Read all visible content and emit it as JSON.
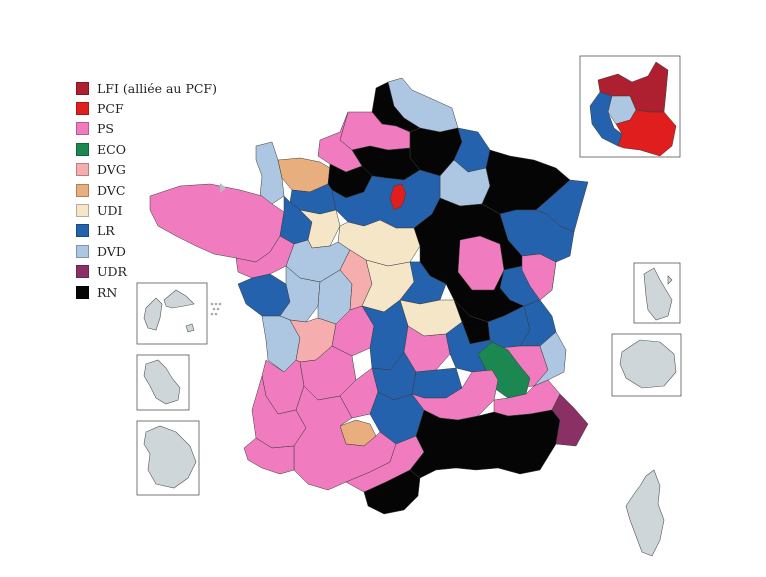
{
  "colors": {
    "LFI": "#ae1f30",
    "PCF": "#e01e1e",
    "PS": "#f07cbf",
    "ECO": "#1b8751",
    "DVG": "#f5adad",
    "DVC": "#e8ae7d",
    "UDI": "#f4e6c6",
    "LR": "#2462ae",
    "DVD": "#adc6e1",
    "UDR": "#8b3065",
    "RN": "#050505",
    "neutral": "#cfd6da"
  },
  "legend": [
    {
      "key": "LFI",
      "label": "LFI (alliée au PCF)"
    },
    {
      "key": "PCF",
      "label": "PCF"
    },
    {
      "key": "PS",
      "label": "PS"
    },
    {
      "key": "ECO",
      "label": "ECO"
    },
    {
      "key": "DVG",
      "label": "DVG"
    },
    {
      "key": "DVC",
      "label": "DVC"
    },
    {
      "key": "UDI",
      "label": "UDI"
    },
    {
      "key": "LR",
      "label": "LR"
    },
    {
      "key": "DVD",
      "label": "DVD"
    },
    {
      "key": "UDR",
      "label": "UDR"
    },
    {
      "key": "RN",
      "label": "RN"
    }
  ],
  "regions": {
    "nord": "DVD",
    "nord_lille": "RN",
    "pas_de_calais_coast": "RN",
    "somme": "PS",
    "aisne": "RN",
    "ardennes": "LR",
    "marne": "DVD",
    "meuse_moselle": "RN",
    "bas_rhin": "LR",
    "vosges_haut_rhin": "LR",
    "seine_maritime": "PS",
    "calvados": "DVC",
    "manche": "DVD",
    "eure": "RN",
    "oise": "RN",
    "paris_area": "LR",
    "idf_red": "PCF",
    "bretagne": "PS",
    "mayenne": "LR",
    "sarthe": "UDI",
    "orne": "LR",
    "loiret": "UDI",
    "indre_et_loire": "DVD",
    "yonne": "RN",
    "haute_marne": "RN",
    "cote_dor": "PS",
    "haute_saone_doubs": "LR",
    "jura": "PS",
    "loire_atlantique": "PS",
    "vendee": "LR",
    "deux_sevres": "DVD",
    "vienne": "DVD",
    "indre": "DVG",
    "cher": "UDI",
    "nievre": "LR",
    "saone_et_loire": "RN",
    "allier": "UDI",
    "ain": "LR",
    "savoie": "LR",
    "charente_maritime": "DVD",
    "charente": "DVG",
    "haute_vienne": "PS",
    "creuse_correze": "LR",
    "puy_de_dome": "PS",
    "rhone_loire": "LR",
    "isere": "PS",
    "drome": "ECO",
    "hautes_alpes": "DVD",
    "cantal": "LR",
    "haute_loire": "LR",
    "gironde": "PS",
    "dordogne": "PS",
    "lot": "PS",
    "tarn_et_garonne": "DVC",
    "aveyron": "LR",
    "lozere_ardeche": "PS",
    "landes": "PS",
    "pyrenees_atlantiques": "PS",
    "gers_hg": "PS",
    "ariege_aude": "PS",
    "pyrenees_orientales": "RN",
    "herault_gard": "RN",
    "bouches_du_rhone_var": "RN",
    "vaucluse": "PS",
    "alpes_maritimes": "UDR",
    "idf_inset_north": "LFI",
    "idf_inset_west": "LR",
    "idf_inset_center": "DVD",
    "idf_inset_south": "PCF"
  }
}
